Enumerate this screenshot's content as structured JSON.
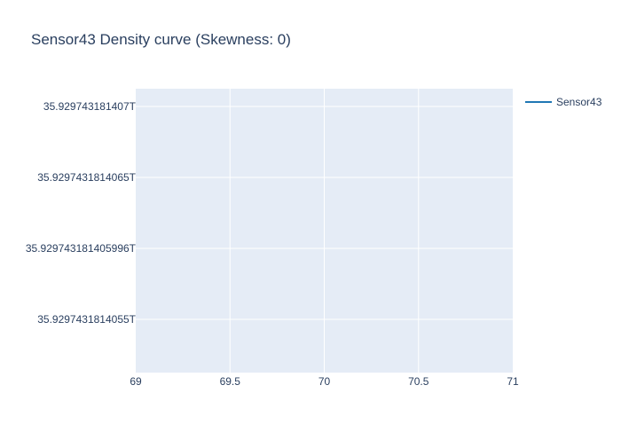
{
  "chart_data": {
    "type": "line",
    "title": "Sensor43 Density curve (Skewness: 0)",
    "xlabel": "",
    "ylabel": "",
    "xlim": [
      69,
      71
    ],
    "ylim": [
      35.929743181405,
      35.929743181407
    ],
    "x_ticks": [
      69,
      69.5,
      70,
      70.5,
      71
    ],
    "x_tick_labels": [
      "69",
      "69.5",
      "70",
      "70.5",
      "71"
    ],
    "y_tick_labels": [
      "35.929743181407T",
      "35.9297431814065T",
      "35.929743181405996T",
      "35.9297431814055T"
    ],
    "series": [
      {
        "name": "Sensor43",
        "color": "#1f77b4",
        "x": [],
        "y": []
      }
    ],
    "grid": true,
    "legend_position": "top-right",
    "plot_background": "#e5ecf6"
  }
}
